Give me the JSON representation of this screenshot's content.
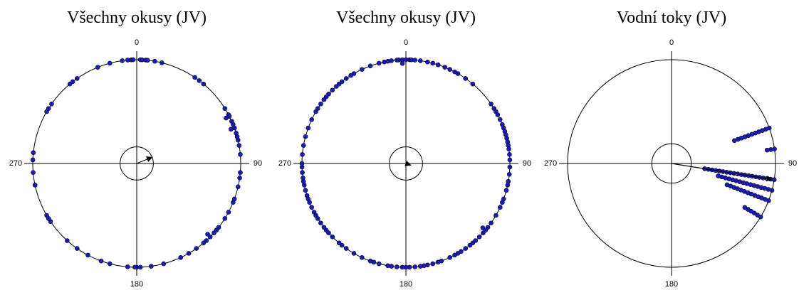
{
  "chart_data": [
    {
      "type": "circular",
      "title": "Všechny okusy (JV)",
      "color": "#1c1cb0",
      "angle_ticks": [
        0,
        90,
        180,
        270
      ],
      "angles": [
        352,
        355,
        357,
        358,
        2,
        3,
        5,
        6,
        10,
        14,
        34,
        37,
        40,
        58,
        62,
        63,
        63,
        66,
        68,
        70,
        70,
        73,
        75,
        77,
        80,
        85,
        95,
        98,
        103,
        110,
        112,
        118,
        122,
        128,
        130,
        132,
        135,
        135,
        138,
        140,
        145,
        150,
        155,
        165,
        172,
        178,
        180,
        181,
        185,
        195,
        200,
        208,
        215,
        222,
        236,
        238,
        240,
        258,
        265,
        272,
        276,
        300,
        302,
        305,
        320,
        322,
        325,
        338,
        345
      ],
      "mean_angle": 68,
      "mean_length": 0.16,
      "critical_r": 0.16
    },
    {
      "type": "circular",
      "title": "Všechny okusy (JV)",
      "color": "#1c1cb0",
      "angle_ticks": [
        0,
        90,
        180,
        270
      ],
      "angles": [
        345,
        348,
        350,
        352,
        355,
        356,
        358,
        358,
        0,
        2,
        3,
        5,
        8,
        12,
        15,
        18,
        22,
        25,
        28,
        30,
        35,
        40,
        55,
        58,
        60,
        62,
        65,
        68,
        70,
        72,
        74,
        76,
        78,
        80,
        82,
        85,
        88,
        92,
        96,
        100,
        102,
        105,
        110,
        112,
        115,
        120,
        125,
        128,
        130,
        130,
        132,
        135,
        138,
        140,
        142,
        145,
        148,
        150,
        152,
        155,
        160,
        162,
        165,
        168,
        170,
        172,
        175,
        178,
        180,
        182,
        185,
        188,
        190,
        195,
        198,
        200,
        205,
        210,
        215,
        218,
        220,
        225,
        228,
        230,
        232,
        235,
        238,
        240,
        242,
        245,
        248,
        250,
        252,
        255,
        258,
        260,
        262,
        265,
        268,
        270,
        275,
        280,
        285,
        290,
        295,
        300,
        302,
        305,
        308,
        310,
        312,
        315,
        318,
        320,
        322,
        325,
        328,
        330,
        335,
        340
      ],
      "mean_angle": 110,
      "mean_length": 0.05,
      "critical_r": 0.16
    },
    {
      "type": "circular",
      "title": "Vodní toky (JV)",
      "color": "#1c1cb0",
      "angle_ticks": [
        0,
        90,
        180,
        270
      ],
      "angles": [
        70,
        70,
        70,
        70,
        70,
        70,
        70,
        70,
        70,
        70,
        70,
        82,
        82,
        82,
        99,
        99,
        99,
        99,
        99,
        99,
        99,
        99,
        99,
        99,
        99,
        99,
        99,
        99,
        99,
        99,
        99,
        99,
        99,
        99,
        105,
        105,
        105,
        105,
        105,
        105,
        105,
        105,
        105,
        105,
        105,
        105,
        105,
        105,
        105,
        105,
        111,
        111,
        111,
        111,
        111,
        111,
        111,
        111,
        111,
        111,
        111,
        111,
        111,
        121,
        121,
        121,
        121,
        121,
        121
      ],
      "mean_angle": 99,
      "mean_length": 0.98,
      "critical_r": 0.19
    }
  ]
}
